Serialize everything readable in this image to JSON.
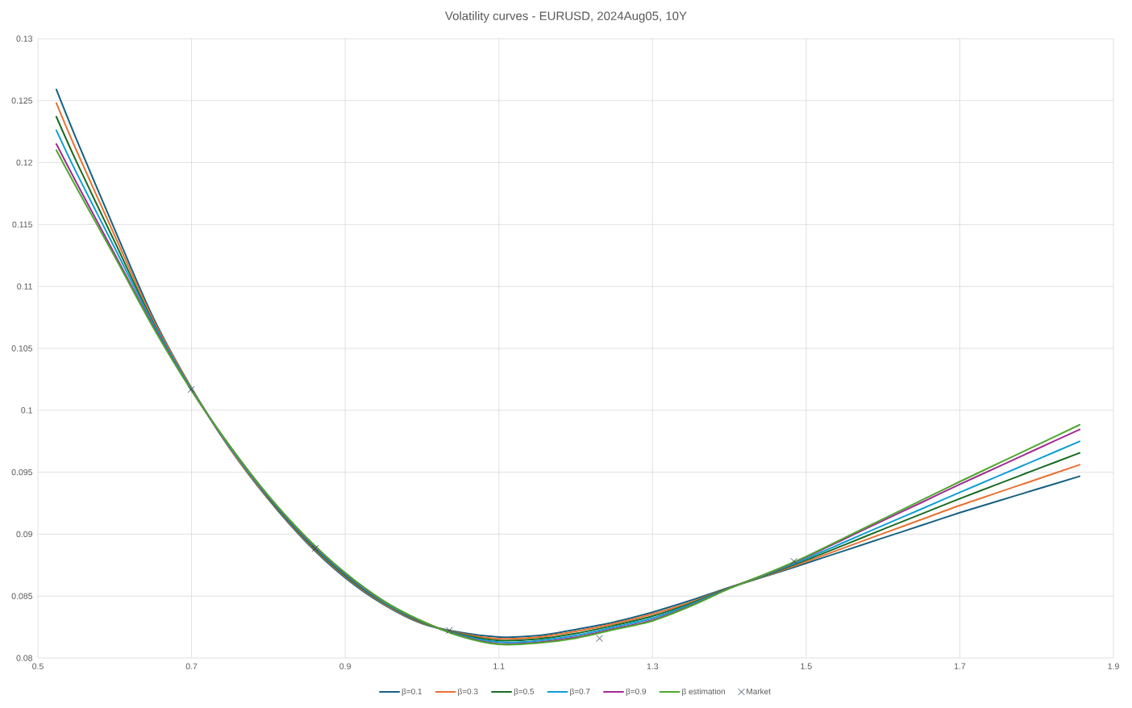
{
  "chart_data": {
    "type": "line",
    "title": "Volatility curves - EURUSD, 2024Aug05, 10Y",
    "x": [
      0.524,
      0.55,
      0.6,
      0.65,
      0.7,
      0.75,
      0.8,
      0.85,
      0.9,
      0.95,
      1.0,
      1.05,
      1.1,
      1.15,
      1.2,
      1.25,
      1.3,
      1.35,
      1.4,
      1.45,
      1.5,
      1.55,
      1.6,
      1.65,
      1.7,
      1.75,
      1.8,
      1.856
    ],
    "xlim": [
      0.5,
      1.9
    ],
    "xticks": [
      0.5,
      0.7,
      0.9,
      1.1,
      1.3,
      1.5,
      1.7,
      1.9
    ],
    "ylim": [
      0.08,
      0.13
    ],
    "yticks": [
      0.08,
      0.085,
      0.09,
      0.095,
      0.1,
      0.105,
      0.11,
      0.115,
      0.12,
      0.125,
      0.13
    ],
    "grid": true,
    "legend": "bottom",
    "series": [
      {
        "name": "β=0.1",
        "color": "#156082",
        "values": [
          0.1259,
          0.1219,
          0.1146,
          0.1075,
          0.1018,
          0.0969,
          0.09281,
          0.08931,
          0.08648,
          0.08432,
          0.08278,
          0.08206,
          0.0817,
          0.0818,
          0.0823,
          0.0829,
          0.0837,
          0.08465,
          0.0857,
          0.08665,
          0.08765,
          0.08867,
          0.08969,
          0.09071,
          0.09173,
          0.09268,
          0.09362,
          0.09467
        ]
      },
      {
        "name": "β=0.3",
        "color": "#e97132",
        "values": [
          0.1248,
          0.121,
          0.1141,
          0.1073,
          0.1018,
          0.0969,
          0.09288,
          0.0894,
          0.08657,
          0.08439,
          0.08282,
          0.08199,
          0.08156,
          0.08167,
          0.08215,
          0.08277,
          0.08355,
          0.08451,
          0.08569,
          0.08669,
          0.08777,
          0.08891,
          0.09005,
          0.09118,
          0.09232,
          0.09337,
          0.09442,
          0.0956
        ]
      },
      {
        "name": "β=0.5",
        "color": "#196b24",
        "values": [
          0.1237,
          0.1201,
          0.1136,
          0.1071,
          0.1017,
          0.097,
          0.09295,
          0.08949,
          0.08666,
          0.08446,
          0.08287,
          0.08192,
          0.08142,
          0.08153,
          0.08198,
          0.08263,
          0.08338,
          0.08442,
          0.08566,
          0.08674,
          0.0879,
          0.08914,
          0.09039,
          0.09163,
          0.09287,
          0.09405,
          0.09524,
          0.09656
        ]
      },
      {
        "name": "β=0.7",
        "color": "#0f9ed5",
        "values": [
          0.1226,
          0.1192,
          0.1131,
          0.107,
          0.1017,
          0.097,
          0.09301,
          0.08958,
          0.08675,
          0.08452,
          0.08292,
          0.08186,
          0.08128,
          0.08139,
          0.08182,
          0.08249,
          0.08322,
          0.08433,
          0.08564,
          0.08679,
          0.08802,
          0.08936,
          0.0907,
          0.09203,
          0.09337,
          0.09469,
          0.09601,
          0.09749
        ]
      },
      {
        "name": "β=0.9",
        "color": "#a02b93",
        "values": [
          0.1215,
          0.1184,
          0.1126,
          0.1068,
          0.1016,
          0.0971,
          0.09308,
          0.08967,
          0.08684,
          0.08459,
          0.08296,
          0.08179,
          0.08114,
          0.08126,
          0.08167,
          0.08236,
          0.08307,
          0.08424,
          0.08562,
          0.08683,
          0.08815,
          0.08962,
          0.09109,
          0.09255,
          0.09402,
          0.09544,
          0.09686,
          0.09845
        ]
      },
      {
        "name": "β estimation",
        "color": "#4ea72e",
        "values": [
          0.121,
          0.118,
          0.1124,
          0.1067,
          0.1016,
          0.0971,
          0.09311,
          0.08971,
          0.08688,
          0.08462,
          0.08298,
          0.08176,
          0.0811,
          0.0812,
          0.0816,
          0.0823,
          0.083,
          0.0842,
          0.08561,
          0.08685,
          0.0882,
          0.08971,
          0.09122,
          0.09273,
          0.09424,
          0.09571,
          0.09718,
          0.09883
        ]
      },
      {
        "name": "Market",
        "type": "scatter",
        "marker": "cross",
        "color": "#33475b",
        "x": [
          0.6994,
          0.861,
          1.0355,
          1.231,
          1.484
        ],
        "values": [
          0.10168,
          0.08885,
          0.08223,
          0.08158,
          0.08781
        ]
      }
    ]
  }
}
